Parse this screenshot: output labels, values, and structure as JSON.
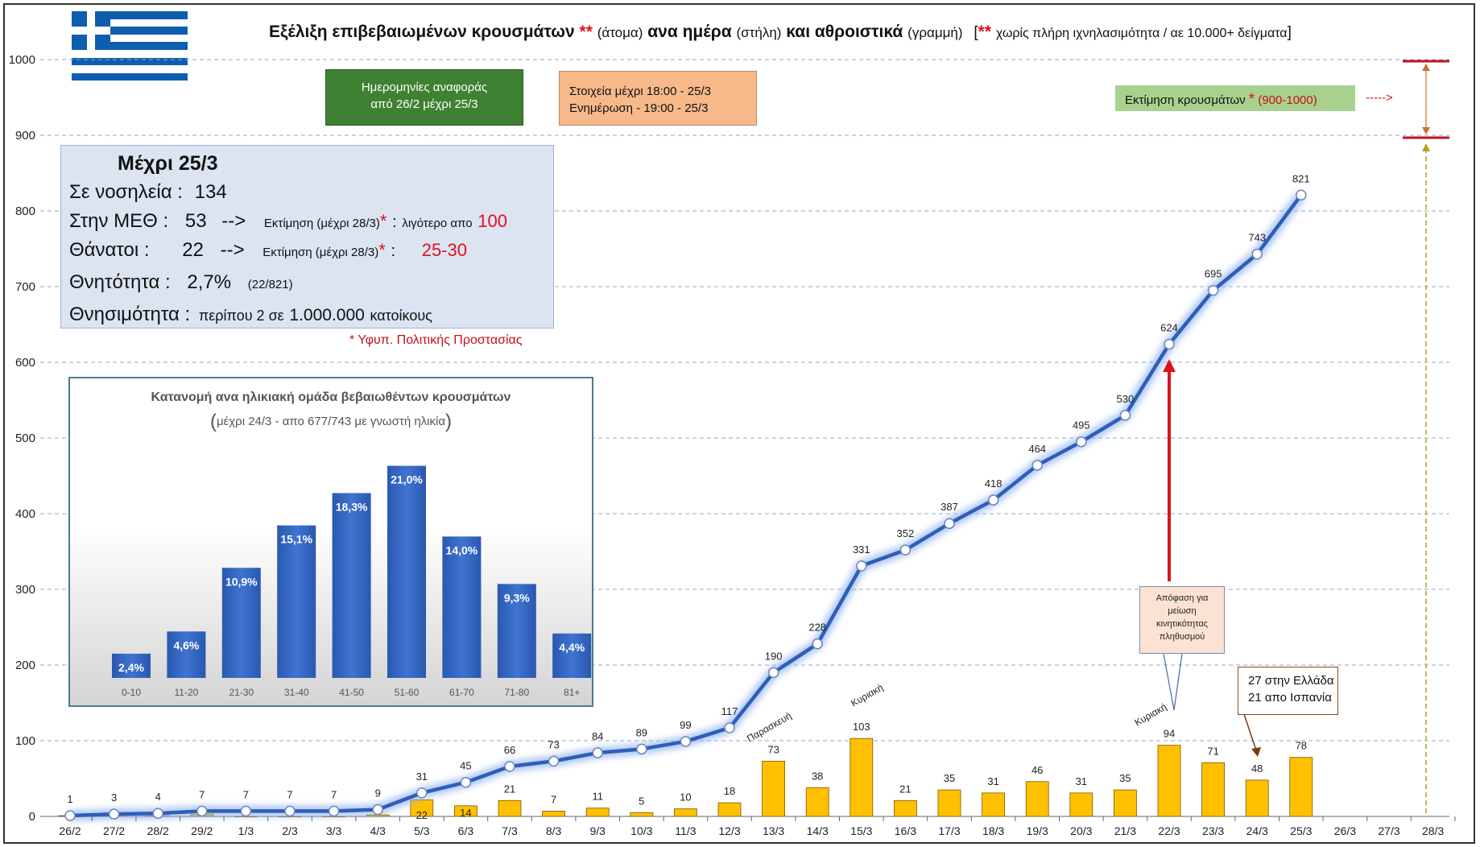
{
  "title": {
    "main": "Εξέλιξη επιβεβαιωμένων κρουσμάτων",
    "stars1": "**",
    "unit1": "(άτομα)",
    "mid": "ανα ημέρα",
    "unit2": "(στήλη)",
    "and": "και αθροιστικά",
    "unit3": "(γραμμή)",
    "bracket_open": "[",
    "stars2": "**",
    "note": "χωρίς πλήρη ιχνηλασιμότητα / αε 10.000+ δείγματα",
    "bracket_close": "]"
  },
  "boxes": {
    "dates_line1": "Ημερομηνίες αναφοράς",
    "dates_line2": "από 26/2 μέχρι 25/3",
    "data_line1": "Στοιχεία μέχρι  18:00 - 25/3",
    "data_line2": "Ενημέρωση  -  19:00 - 25/3",
    "estimate_label": "Εκτίμηση κρουσμάτων",
    "estimate_star": "*",
    "estimate_range": "(900-1000)",
    "estimate_arrow": "----->"
  },
  "summary": {
    "heading": "Μέχρι 25/3",
    "hosp_label": "Σε νοσηλεία :",
    "hosp_value": "134",
    "icu_label": "Στην ΜΕΘ :",
    "icu_value": "53",
    "icu_arrow": "-->",
    "icu_est": "Εκτίμηση (μέχρι 28/3)",
    "icu_star": "*",
    "icu_colon": ":",
    "icu_less": "λιγότερο απο",
    "icu_target": "100",
    "deaths_label": "Θάνατοι :",
    "deaths_value": "22",
    "deaths_arrow": "-->",
    "deaths_est": "Εκτίμηση (μέχρι 28/3)",
    "deaths_star": "*",
    "deaths_colon": ":",
    "deaths_target": "25-30",
    "cfr_label": "Θνητότητα :",
    "cfr_value": "2,7%",
    "cfr_ratio": "(22/821)",
    "mort_label": "Θνησιμότητα :",
    "mort_value1": "περίπου 2 σε",
    "mort_value2": "1.000.000",
    "mort_value3": "κατοίκους",
    "source": "* Υφυπ. Πολιτικής Προστασίας"
  },
  "annotations": {
    "decision": [
      "Απόφαση για",
      "μείωση",
      "κινητικότητας",
      "πληθυσμού"
    ],
    "greece_spain": [
      "27 στην Ελλάδα",
      "21 απο Ισπανία"
    ],
    "friday": "Παρασκευή",
    "sunday1": "Κυριακή",
    "sunday2": "Κυριακή"
  },
  "colors": {
    "bar": "#FFC000",
    "line": "#2E5EB8",
    "red": "#E0101E",
    "green_box": "#3F8132",
    "orange_box": "#F7B98A",
    "light_green": "#A9D18E",
    "summary_bg": "#DCE4F2",
    "age_bar": "#3567C2"
  },
  "chart_data": [
    {
      "type": "bar+line",
      "title": "Εξέλιξη επιβεβαιωμένων κρουσμάτων",
      "categories": [
        "26/2",
        "27/2",
        "28/2",
        "29/2",
        "1/3",
        "2/3",
        "3/3",
        "4/3",
        "5/3",
        "6/3",
        "7/3",
        "8/3",
        "9/3",
        "10/3",
        "11/3",
        "12/3",
        "13/3",
        "14/3",
        "15/3",
        "16/3",
        "17/3",
        "18/3",
        "19/3",
        "20/3",
        "21/3",
        "22/3",
        "23/3",
        "24/3",
        "25/3",
        "26/3",
        "27/3",
        "28/3"
      ],
      "series": [
        {
          "name": "ανα ημέρα (στήλη)",
          "kind": "bar",
          "values": [
            1,
            2,
            1,
            3,
            0,
            0,
            0,
            2,
            22,
            14,
            21,
            7,
            11,
            5,
            10,
            18,
            73,
            38,
            103,
            21,
            35,
            31,
            46,
            31,
            35,
            94,
            71,
            48,
            78,
            null,
            null,
            null
          ],
          "labels": [
            null,
            null,
            null,
            null,
            null,
            null,
            null,
            null,
            "22",
            "14",
            "21",
            "7",
            "11",
            "5",
            "10",
            "18",
            "73",
            "38",
            "103",
            "21",
            "35",
            "31",
            "46",
            "31",
            "35",
            "94",
            "71",
            "48",
            "78",
            null,
            null,
            null
          ]
        },
        {
          "name": "αθροιστικά (γραμμή)",
          "kind": "line",
          "values": [
            1,
            3,
            4,
            7,
            7,
            7,
            7,
            9,
            31,
            45,
            66,
            73,
            84,
            89,
            99,
            117,
            190,
            228,
            331,
            352,
            387,
            418,
            464,
            495,
            530,
            624,
            695,
            743,
            821,
            null,
            null,
            null
          ],
          "labels": [
            "1",
            "3",
            "4",
            "7",
            "7",
            "7",
            "7",
            "9",
            "31",
            "45",
            "66",
            "73",
            "84",
            "89",
            "99",
            "117",
            "190",
            "228",
            "331",
            "352",
            "387",
            "418",
            "464",
            "495",
            "530",
            "624",
            "695",
            "743",
            "821",
            null,
            null,
            null
          ]
        }
      ],
      "ylim": [
        0,
        1000
      ],
      "yticks": [
        "0",
        "100",
        "200",
        "300",
        "400",
        "500",
        "600",
        "700",
        "800",
        "900",
        "1000"
      ],
      "estimate_range": [
        900,
        1000
      ],
      "grid": "horizontal dashed"
    },
    {
      "type": "bar",
      "title": "Κατανομή ανα ηλικιακή ομάδα βεβαιωθέντων κρουσμάτων",
      "subtitle_open": "(",
      "subtitle": "μέχρι 24/3  - απο 677/743 με γνωστή ηλικία",
      "subtitle_close": ")",
      "categories": [
        "0-10",
        "11-20",
        "21-30",
        "31-40",
        "41-50",
        "51-60",
        "61-70",
        "71-80",
        "81+"
      ],
      "values": [
        2.4,
        4.6,
        10.9,
        15.1,
        18.3,
        21.0,
        14.0,
        9.3,
        4.4
      ],
      "labels": [
        "2,4%",
        "4,6%",
        "10,9%",
        "15,1%",
        "18,3%",
        "21,0%",
        "14,0%",
        "9,3%",
        "4,4%"
      ],
      "ylim": [
        0,
        22
      ]
    }
  ]
}
